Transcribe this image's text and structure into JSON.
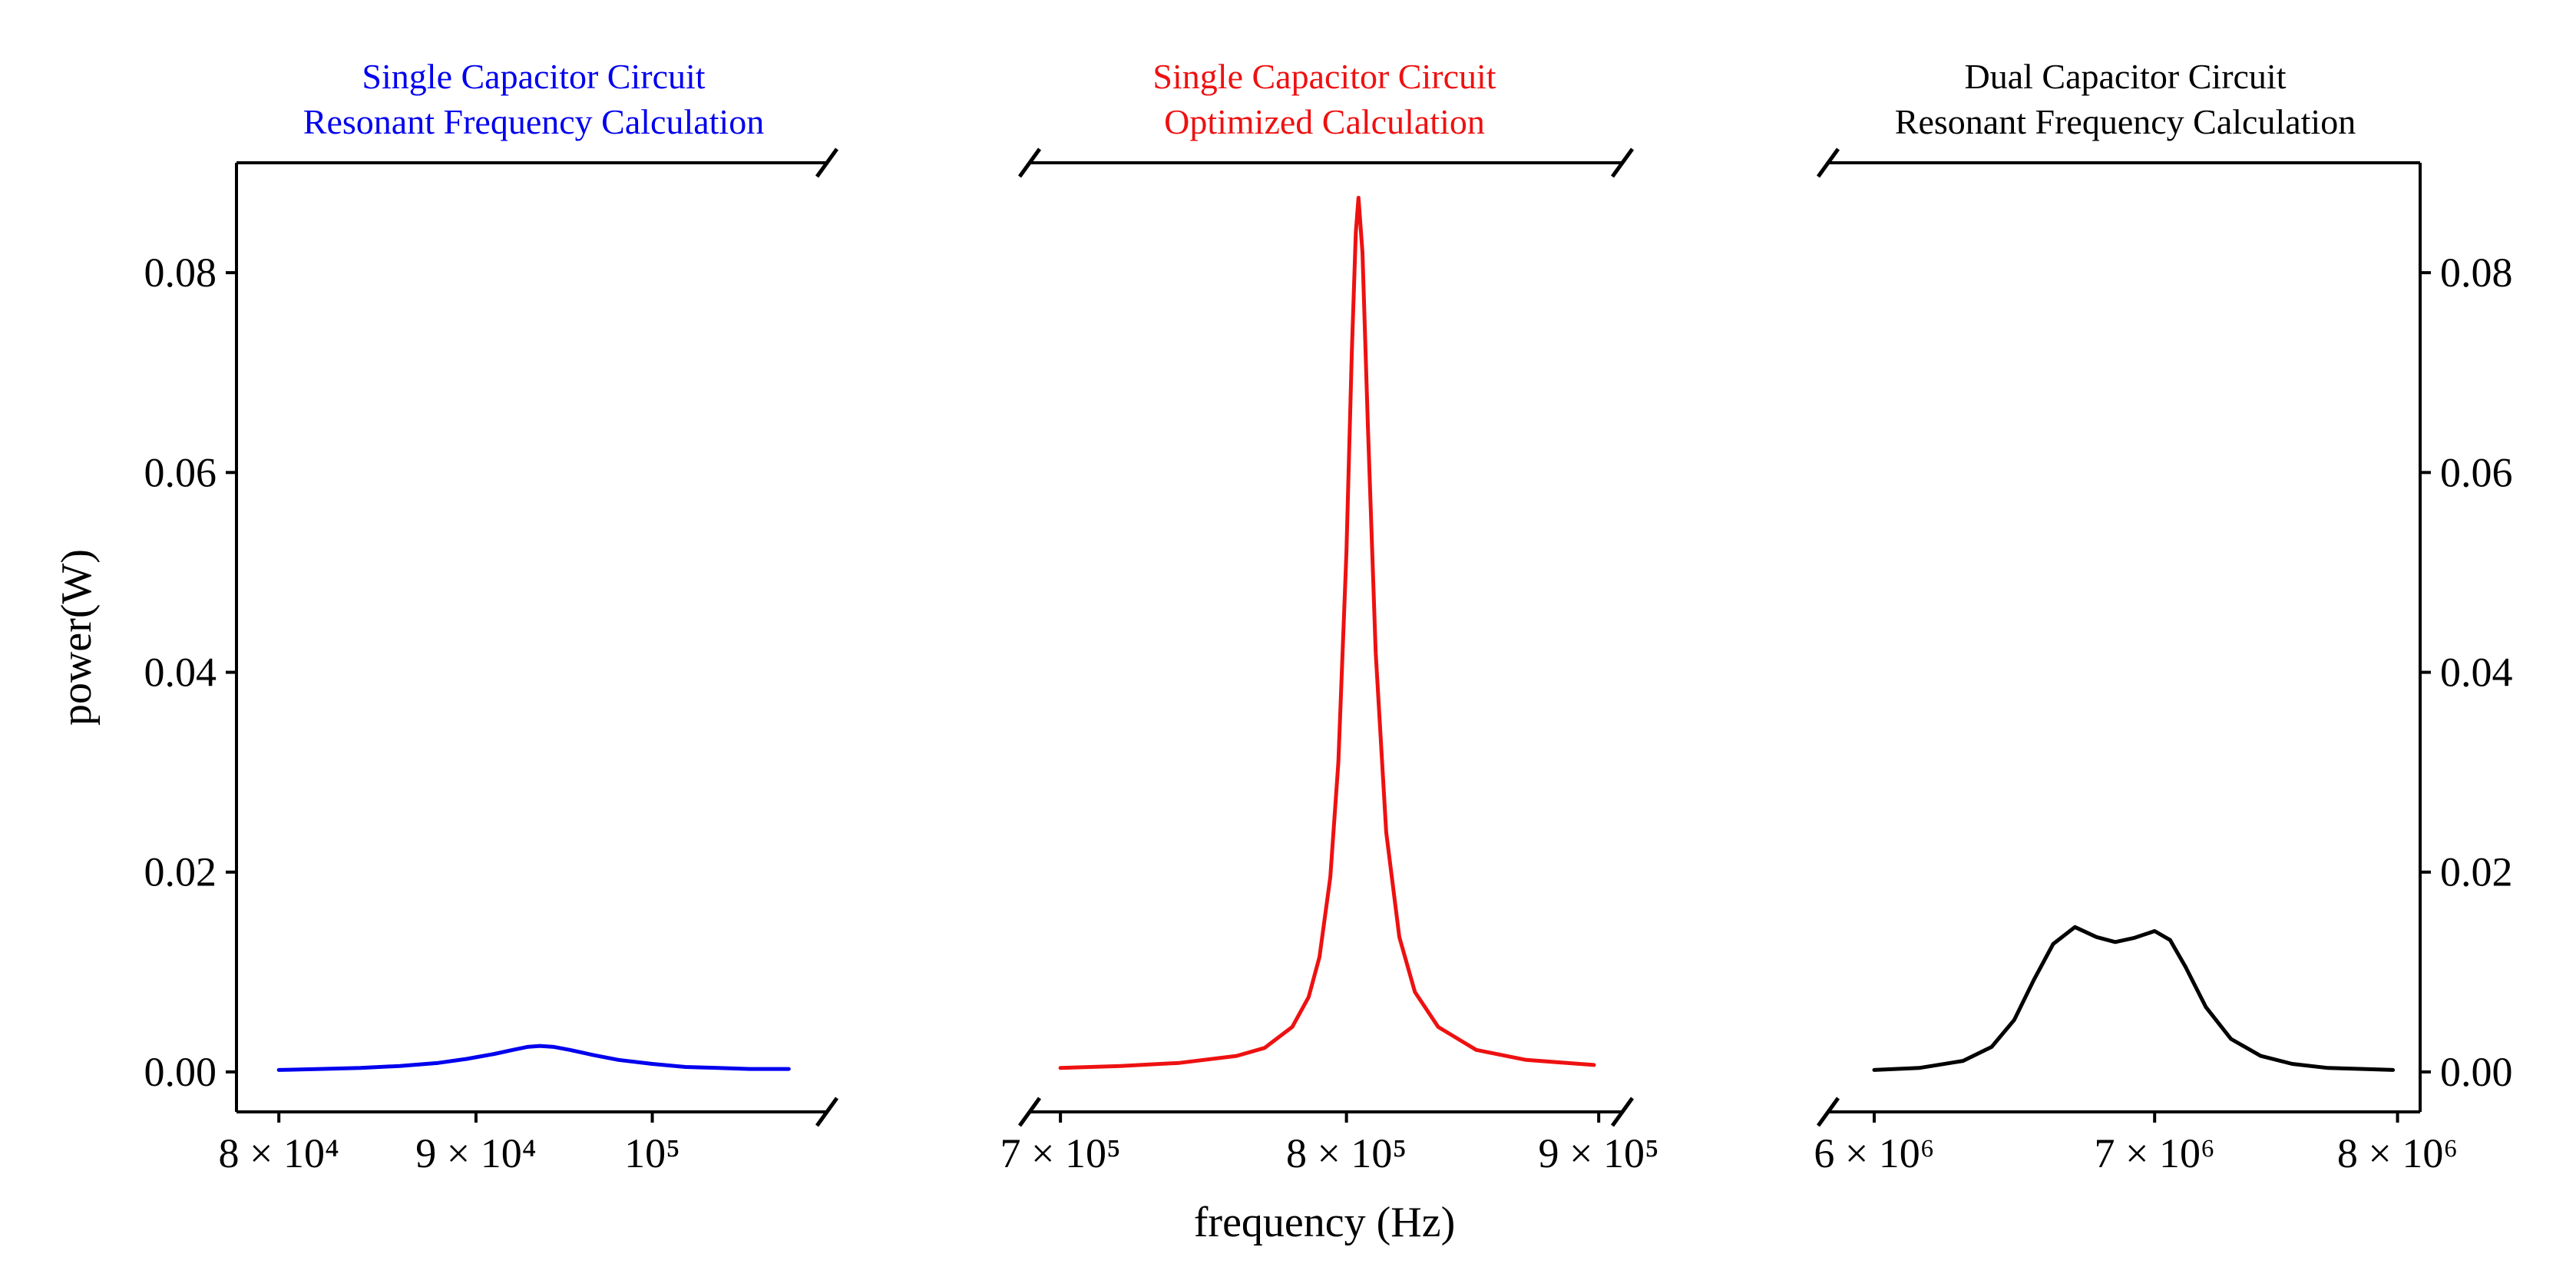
{
  "chart_data": [
    {
      "type": "line",
      "title_lines": [
        "Single Capacitor Circuit",
        "Resonant Frequency Calculation"
      ],
      "color": "#0000ee",
      "xscale": "log",
      "xlim": [
        78000,
        111000
      ],
      "ylim": [
        -0.004,
        0.091
      ],
      "xticks": [
        {
          "value": 80000,
          "label": "8 × 10⁴"
        },
        {
          "value": 90000,
          "label": "9 × 10⁴"
        },
        {
          "value": 100000,
          "label": "10⁵"
        }
      ],
      "series": [
        {
          "name": "Single Capacitor Circuit Resonant Frequency Calculation",
          "x": [
            80000,
            82000,
            84000,
            86000,
            88000,
            89500,
            91000,
            92000,
            92800,
            93500,
            94300,
            95200,
            96500,
            98000,
            100000,
            102000,
            104000,
            106000,
            108500
          ],
          "y": [
            0.0002,
            0.0003,
            0.0004,
            0.0006,
            0.0009,
            0.0013,
            0.0018,
            0.0022,
            0.0025,
            0.0026,
            0.0025,
            0.0022,
            0.0017,
            0.0012,
            0.0008,
            0.0005,
            0.0004,
            0.0003,
            0.0003
          ]
        }
      ]
    },
    {
      "type": "line",
      "title_lines": [
        "Single Capacitor Circuit",
        "Optimized Calculation"
      ],
      "color": "#ee1111",
      "xscale": "log",
      "xlim": [
        690000,
        910000
      ],
      "ylim": [
        -0.004,
        0.091
      ],
      "xlabel": "frequency (Hz)",
      "xticks": [
        {
          "value": 700000,
          "label": "7 × 10⁵"
        },
        {
          "value": 800000,
          "label": "8 × 10⁵"
        },
        {
          "value": 900000,
          "label": "9 × 10⁵"
        }
      ],
      "series": [
        {
          "name": "Single Capacitor Circuit Optimized Calculation",
          "x": [
            700000,
            720000,
            740000,
            760000,
            770000,
            780000,
            786000,
            790000,
            794000,
            797000,
            800000,
            802000,
            803500,
            804500,
            806000,
            808000,
            811000,
            815000,
            820000,
            826000,
            835000,
            850000,
            870000,
            898000
          ],
          "y": [
            0.0004,
            0.0006,
            0.0009,
            0.0016,
            0.0024,
            0.0045,
            0.0075,
            0.0115,
            0.0195,
            0.031,
            0.052,
            0.072,
            0.084,
            0.0875,
            0.082,
            0.065,
            0.042,
            0.024,
            0.0135,
            0.008,
            0.0045,
            0.0022,
            0.0012,
            0.0007
          ]
        }
      ]
    },
    {
      "type": "line",
      "title_lines": [
        "Dual Capacitor Circuit",
        "Resonant Frequency Calculation"
      ],
      "color": "#000000",
      "xscale": "log",
      "xlim": [
        5850000,
        8100000
      ],
      "ylim": [
        -0.004,
        0.091
      ],
      "ylabel_side": "right",
      "xticks": [
        {
          "value": 6000000,
          "label": "6 × 10⁶"
        },
        {
          "value": 7000000,
          "label": "7 × 10⁶"
        },
        {
          "value": 8000000,
          "label": "8 × 10⁶"
        }
      ],
      "series": [
        {
          "name": "Dual Capacitor Circuit Resonant Frequency Calculation",
          "x": [
            6000000,
            6150000,
            6300000,
            6400000,
            6480000,
            6550000,
            6620000,
            6700000,
            6780000,
            6850000,
            6920000,
            7000000,
            7060000,
            7120000,
            7200000,
            7300000,
            7420000,
            7550000,
            7700000,
            7850000,
            7980000
          ],
          "y": [
            0.0002,
            0.0004,
            0.0011,
            0.0025,
            0.0052,
            0.0092,
            0.0128,
            0.0145,
            0.0135,
            0.013,
            0.0134,
            0.0141,
            0.0132,
            0.0105,
            0.0065,
            0.0033,
            0.0016,
            0.0008,
            0.0004,
            0.0003,
            0.0002
          ]
        }
      ]
    }
  ],
  "shared_y": {
    "label": "power(W)",
    "ticks": [
      {
        "value": 0.0,
        "label": "0.00"
      },
      {
        "value": 0.02,
        "label": "0.02"
      },
      {
        "value": 0.04,
        "label": "0.04"
      },
      {
        "value": 0.06,
        "label": "0.06"
      },
      {
        "value": 0.08,
        "label": "0.08"
      }
    ]
  }
}
